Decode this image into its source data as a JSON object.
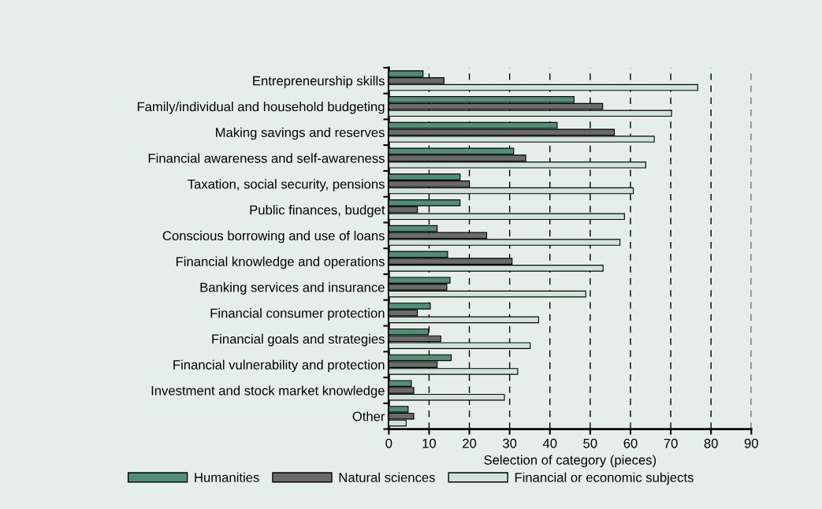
{
  "chart_data": {
    "type": "bar",
    "orientation": "horizontal",
    "xlabel": "Selection of category (pieces)",
    "categories": [
      "Entrepreneurship skills",
      "Family/individual and household budgeting",
      "Making savings and reserves",
      "Financial awareness and self-awareness",
      "Taxation, social security, pensions",
      "Public finances, budget",
      "Conscious borrowing and use of loans",
      "Financial knowledge and operations",
      "Banking services and insurance",
      "Financial consumer protection",
      "Financial goals and strategies",
      "Financial vulnerability and protection",
      "Investment and stock market knowledge",
      "Other"
    ],
    "series": [
      {
        "name": "Humanities",
        "color": "#4e8f78",
        "values": [
          8.5,
          46.0,
          41.8,
          31.0,
          17.7,
          17.7,
          12.0,
          14.6,
          15.2,
          10.3,
          9.8,
          15.5,
          5.6,
          4.8
        ]
      },
      {
        "name": "Natural sciences",
        "color": "#6b6b6b",
        "values": [
          13.7,
          53.1,
          56.0,
          34.0,
          20.0,
          7.1,
          24.3,
          30.6,
          14.4,
          7.1,
          12.9,
          12.0,
          6.2,
          6.2
        ]
      },
      {
        "name": "Financial or economic subjects",
        "color": "#cfe3db",
        "values": [
          76.7,
          70.2,
          65.9,
          63.8,
          60.7,
          58.5,
          57.4,
          53.2,
          48.9,
          37.2,
          35.1,
          32.0,
          28.7,
          4.3
        ]
      }
    ],
    "xlim": [
      0,
      90
    ],
    "xticks": [
      0,
      10,
      20,
      30,
      40,
      50,
      60,
      70,
      80,
      90
    ],
    "grid": "x",
    "legend": "bottom"
  }
}
